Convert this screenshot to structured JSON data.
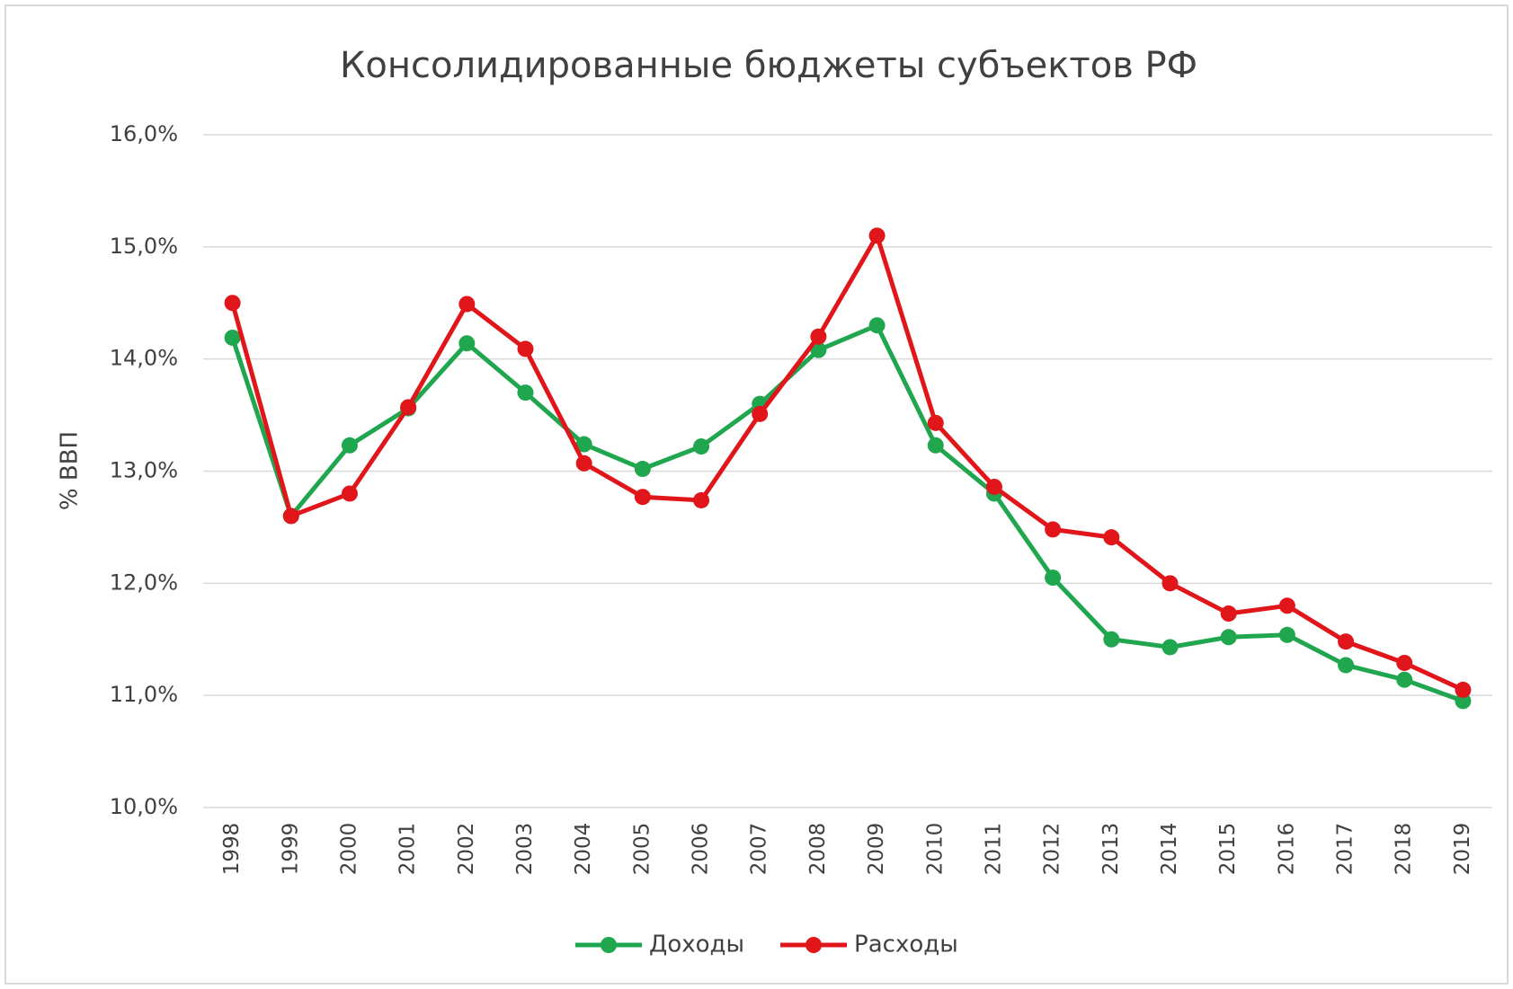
{
  "chart_data": {
    "type": "line",
    "title": "Консолидированные  бюджеты субъектов РФ",
    "y_label": "% ВВП",
    "categories": [
      "1998",
      "1999",
      "2000",
      "2001",
      "2002",
      "2003",
      "2004",
      "2005",
      "2006",
      "2007",
      "2008",
      "2009",
      "2010",
      "2011",
      "2012",
      "2013",
      "2014",
      "2015",
      "2016",
      "2017",
      "2018",
      "2019"
    ],
    "series": [
      {
        "name": "Доходы",
        "color": "#1fa64e",
        "values": [
          14.19,
          12.6,
          13.23,
          13.56,
          14.14,
          13.7,
          13.24,
          13.02,
          13.22,
          13.6,
          14.08,
          14.3,
          13.23,
          12.8,
          12.05,
          11.5,
          11.43,
          11.52,
          11.54,
          11.27,
          11.14,
          10.95
        ]
      },
      {
        "name": "Расходы",
        "color": "#e0161b",
        "values": [
          14.5,
          12.6,
          12.8,
          13.57,
          14.49,
          14.09,
          13.07,
          12.77,
          12.74,
          13.51,
          14.2,
          15.1,
          13.43,
          12.86,
          12.48,
          12.41,
          12.0,
          11.73,
          11.8,
          11.48,
          11.29,
          11.05
        ]
      }
    ],
    "ylim": [
      10,
      16
    ],
    "yticks": [
      {
        "value": 10,
        "label": "10,0%"
      },
      {
        "value": 11,
        "label": "11,0%"
      },
      {
        "value": 12,
        "label": "12,0%"
      },
      {
        "value": 13,
        "label": "13,0%"
      },
      {
        "value": 14,
        "label": "14,0%"
      },
      {
        "value": 15,
        "label": "15,0%"
      },
      {
        "value": 16,
        "label": "16,0%"
      }
    ],
    "grid": true,
    "legend": "bottom"
  }
}
